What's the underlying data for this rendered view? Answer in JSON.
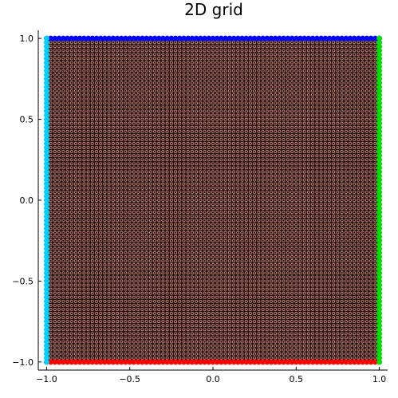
{
  "chart_data": {
    "type": "scatter",
    "title": "2D grid",
    "xlabel": "",
    "ylabel": "",
    "xlim": [
      -1.05,
      1.05
    ],
    "ylim": [
      -1.05,
      1.05
    ],
    "grid": false,
    "legend": "none",
    "x_ticks": [
      {
        "value": -1.0,
        "label": "−1.0"
      },
      {
        "value": -0.5,
        "label": "−0.5"
      },
      {
        "value": 0.0,
        "label": "0.0"
      },
      {
        "value": 0.5,
        "label": "0.5"
      },
      {
        "value": 1.0,
        "label": "1.0"
      }
    ],
    "y_ticks": [
      {
        "value": -1.0,
        "label": "−1.0"
      },
      {
        "value": -0.5,
        "label": "−0.5"
      },
      {
        "value": 0.0,
        "label": "0.0"
      },
      {
        "value": 0.5,
        "label": "0.5"
      },
      {
        "value": 1.0,
        "label": "1.0"
      }
    ],
    "grid_step": 0.025,
    "series": [
      {
        "role": "interior",
        "color": "#e8a08f",
        "x_range": [
          -0.975,
          0.975
        ],
        "y_range": [
          -0.975,
          0.975
        ],
        "background": "#2a1614"
      },
      {
        "role": "boundary-top",
        "color": "#0000ff",
        "x_range": [
          -1.0,
          1.0
        ],
        "y": 1.0
      },
      {
        "role": "boundary-bottom",
        "color": "#ff0000",
        "x_range": [
          -1.0,
          1.0
        ],
        "y": -1.0
      },
      {
        "role": "boundary-left",
        "color": "#00d0ff",
        "x": -1.0,
        "y_range": [
          -1.0,
          1.0
        ]
      },
      {
        "role": "boundary-right",
        "color": "#00e000",
        "x": 1.0,
        "y_range": [
          -1.0,
          1.0
        ]
      }
    ]
  }
}
